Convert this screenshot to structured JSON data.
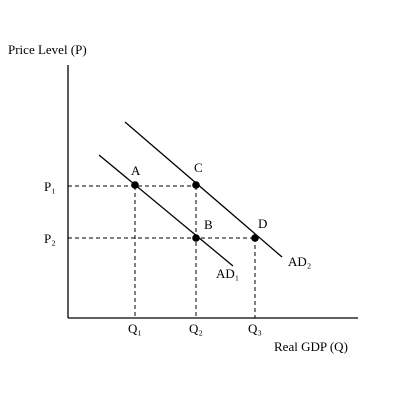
{
  "diagram": {
    "y_axis_title": "Price Level (P)",
    "x_axis_title": "Real GDP (Q)",
    "price_labels": [
      "P₁",
      "P₂"
    ],
    "quantity_labels": [
      "Q₁",
      "Q₂",
      "Q₃"
    ],
    "curves": [
      {
        "name": "AD₁"
      },
      {
        "name": "AD₂"
      }
    ],
    "points": [
      {
        "name": "A"
      },
      {
        "name": "B"
      },
      {
        "name": "C"
      },
      {
        "name": "D"
      }
    ]
  }
}
